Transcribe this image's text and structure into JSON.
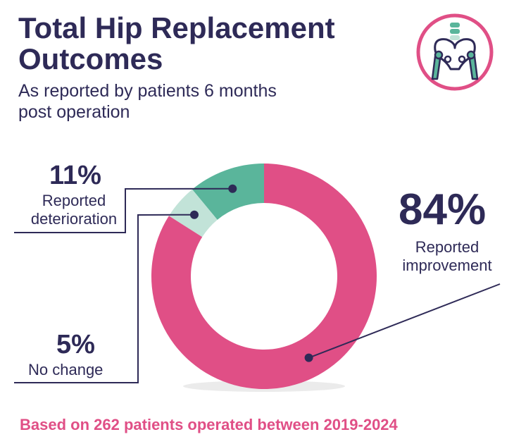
{
  "header": {
    "title_line1": "Total Hip Replacement",
    "title_line2": "Outcomes",
    "subtitle_line1": "As reported by patients 6 months",
    "subtitle_line2": "post operation"
  },
  "footnote": "Based on 262 patients operated between 2019-2024",
  "colors": {
    "improvement": "#e04f86",
    "deterioration": "#5ab59b",
    "no_change": "#c2e3d8",
    "text": "#2e2a57",
    "logo_ring": "#e04f86"
  },
  "logo": {
    "icon": "pelvis-hip-joint-icon"
  },
  "chart_data": {
    "type": "pie",
    "variant": "donut",
    "slices": [
      {
        "key": "deterioration",
        "value": 11,
        "pct_label": "11%",
        "label_line1": "Reported",
        "label_line2": "deterioration"
      },
      {
        "key": "no_change",
        "value": 5,
        "pct_label": "5%",
        "label_line1": "No change",
        "label_line2": ""
      },
      {
        "key": "improvement",
        "value": 84,
        "pct_label": "84%",
        "label_line1": "Reported",
        "label_line2": "improvement"
      }
    ]
  }
}
